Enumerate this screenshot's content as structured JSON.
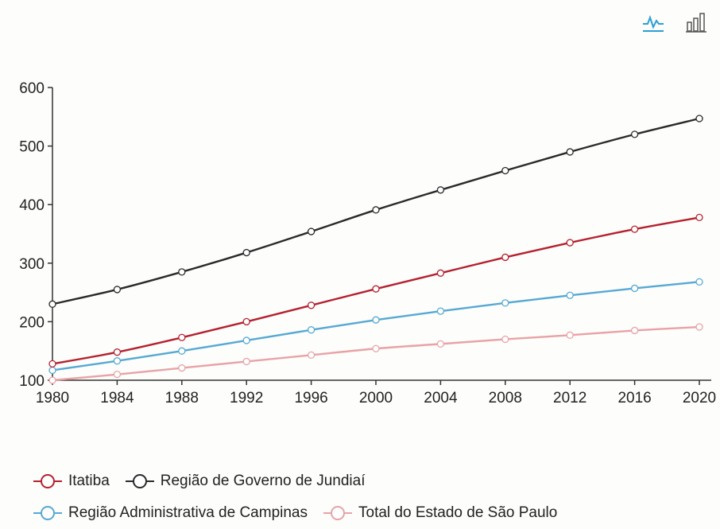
{
  "toolbar": {
    "line_view_icon": "line-chart-icon",
    "bar_view_icon": "bar-chart-icon",
    "accent": "#2a9fd6"
  },
  "chart_data": {
    "type": "line",
    "x": [
      1980,
      1984,
      1988,
      1992,
      1996,
      2000,
      2004,
      2008,
      2012,
      2016,
      2020
    ],
    "ylim": [
      100,
      600
    ],
    "yticks": [
      100,
      200,
      300,
      400,
      500,
      600
    ],
    "xticks": [
      1980,
      1984,
      1988,
      1992,
      1996,
      2000,
      2004,
      2008,
      2012,
      2016,
      2020
    ],
    "grid": false,
    "legend_position": "bottom",
    "series": [
      {
        "name": "Itatiba",
        "color": "#b5212f",
        "values": [
          128,
          148,
          173,
          200,
          228,
          256,
          283,
          310,
          335,
          358,
          378
        ]
      },
      {
        "name": "Região de Governo de Jundiaí",
        "color": "#2a2a2a",
        "values": [
          230,
          255,
          285,
          318,
          354,
          391,
          425,
          458,
          490,
          520,
          547
        ]
      },
      {
        "name": "Região Administrativa de Campinas",
        "color": "#56a9d3",
        "values": [
          117,
          133,
          150,
          168,
          186,
          203,
          218,
          232,
          245,
          257,
          268
        ]
      },
      {
        "name": "Total do Estado de São Paulo",
        "color": "#e8a3a6",
        "values": [
          100,
          110,
          121,
          132,
          143,
          154,
          162,
          170,
          177,
          185,
          191
        ]
      }
    ]
  }
}
